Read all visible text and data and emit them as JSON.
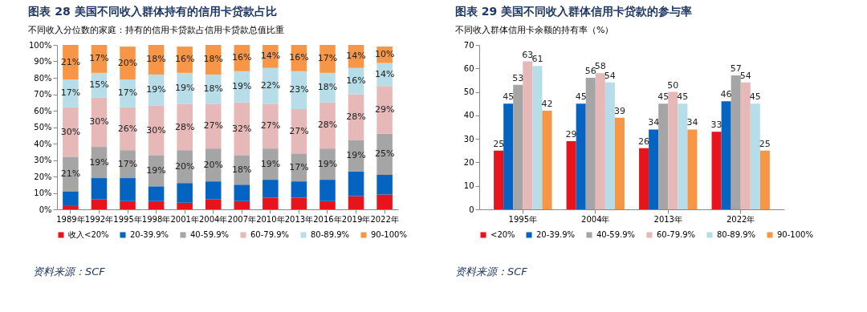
{
  "chart_data": [
    {
      "type": "bar",
      "stacked": true,
      "title": "图表 28   美国不同收入群体持有的信用卡贷款占比",
      "subtitle": "不同收入分位数的家庭：持有的信用卡贷款占信用卡贷款总值比重",
      "categories": [
        "1989年",
        "1992年",
        "1995年",
        "1998年",
        "2001年",
        "2004年",
        "2007年",
        "2010年",
        "2013年",
        "2016年",
        "2019年",
        "2022年"
      ],
      "ylim": [
        0,
        100
      ],
      "yticks": [
        {
          "value": 0,
          "label": "0%"
        },
        {
          "value": 10,
          "label": "10%"
        },
        {
          "value": 20,
          "label": "20%"
        },
        {
          "value": 30,
          "label": "30%"
        },
        {
          "value": 40,
          "label": "40%"
        },
        {
          "value": 50,
          "label": "50%"
        },
        {
          "value": 60,
          "label": "60%"
        },
        {
          "value": 70,
          "label": "70%"
        },
        {
          "value": 80,
          "label": "80%"
        },
        {
          "value": 90,
          "label": "90%"
        },
        {
          "value": 100,
          "label": "100%"
        }
      ],
      "grid": false,
      "legend": "bottom",
      "series": [
        {
          "name": "收入<20%",
          "color": "#e8141c",
          "values": [
            2,
            6,
            5,
            5,
            4,
            6,
            5,
            7,
            7,
            5,
            8,
            9
          ]
        },
        {
          "name": "20-39.9%",
          "color": "#0563c1",
          "values": [
            9,
            13,
            14,
            9,
            12,
            11,
            10,
            11,
            10,
            13,
            15,
            12
          ]
        },
        {
          "name": "40-59.9%",
          "color": "#a5a5a5",
          "values": [
            21,
            19,
            17,
            19,
            20,
            20,
            18,
            19,
            17,
            19,
            19,
            25
          ],
          "value_labels": [
            "21%",
            "19%",
            "17%",
            "19%",
            "20%",
            "20%",
            "18%",
            "19%",
            "17%",
            "19%",
            "19%",
            "25%"
          ]
        },
        {
          "name": "60-79.9%",
          "color": "#e6b8b7",
          "values": [
            30,
            30,
            26,
            30,
            28,
            27,
            32,
            27,
            27,
            28,
            28,
            29
          ],
          "value_labels": [
            "30%",
            "30%",
            "26%",
            "30%",
            "28%",
            "27%",
            "32%",
            "27%",
            "27%",
            "28%",
            "28%",
            "29%"
          ]
        },
        {
          "name": "80-89.9%",
          "color": "#b7dee8",
          "values": [
            17,
            15,
            17,
            19,
            19,
            18,
            19,
            22,
            23,
            18,
            16,
            14
          ],
          "value_labels": [
            "17%",
            "15%",
            "17%",
            "19%",
            "19%",
            "18%",
            "19%",
            "22%",
            "23%",
            "18%",
            "16%",
            "14%"
          ]
        },
        {
          "name": "90-100%",
          "color": "#f79646",
          "values": [
            21,
            17,
            20,
            18,
            16,
            18,
            16,
            14,
            16,
            17,
            14,
            10
          ],
          "value_labels": [
            "21%",
            "17%",
            "20%",
            "18%",
            "16%",
            "18%",
            "16%",
            "14%",
            "16%",
            "17%",
            "14%",
            "10%"
          ]
        }
      ],
      "annotations": [
        "资料来源：SCF"
      ]
    },
    {
      "type": "bar",
      "title": "图表 29   美国不同收入群体信用卡贷款的参与率",
      "subtitle": "不同收入群体信用卡余额的持有率（%）",
      "categories": [
        "1995年",
        "2004年",
        "2013年",
        "2022年"
      ],
      "ylim": [
        0,
        70
      ],
      "yticks": [
        0,
        10,
        20,
        30,
        40,
        50,
        60,
        70
      ],
      "grid": false,
      "legend": "bottom",
      "data_labels": true,
      "series": [
        {
          "name": "<20%",
          "color": "#e8141c",
          "values": [
            25,
            29,
            26,
            33
          ]
        },
        {
          "name": "20-39.9%",
          "color": "#0563c1",
          "values": [
            45,
            45,
            34,
            46
          ]
        },
        {
          "name": "40-59.9%",
          "color": "#a5a5a5",
          "values": [
            53,
            56,
            45,
            57
          ]
        },
        {
          "name": "60-79.9%",
          "color": "#e6b8b7",
          "values": [
            63,
            58,
            50,
            54
          ]
        },
        {
          "name": "80-89.9%",
          "color": "#b7dee8",
          "values": [
            61,
            54,
            45,
            45
          ]
        },
        {
          "name": "90-100%",
          "color": "#f79646",
          "values": [
            42,
            39,
            34,
            25
          ]
        }
      ],
      "annotations": [
        "资料来源：SCF"
      ]
    }
  ]
}
